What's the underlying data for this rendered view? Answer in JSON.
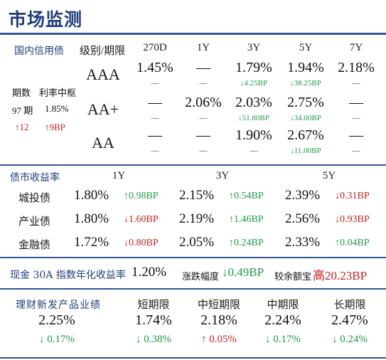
{
  "title": "市场监测",
  "credit": {
    "section_label": "国内信用债",
    "grade_header": "级别/期限",
    "columns": [
      "270D",
      "1Y",
      "3Y",
      "5Y",
      "7Y"
    ],
    "grades": [
      "AAA",
      "AA+",
      "AA"
    ],
    "values": [
      [
        "1.45%",
        "—",
        "1.79%",
        "1.94%",
        "2.18%"
      ],
      [
        "—",
        "2.06%",
        "2.03%",
        "2.75%",
        "—"
      ],
      [
        "—",
        "—",
        "1.90%",
        "2.67%",
        "—"
      ]
    ],
    "changes": [
      [
        {
          "d": "",
          "v": "—"
        },
        {
          "d": "",
          "v": "—"
        },
        {
          "d": "down",
          "v": "4.25BP"
        },
        {
          "d": "down",
          "v": "38.25BP"
        },
        {
          "d": "",
          "v": "—"
        }
      ],
      [
        {
          "d": "",
          "v": "—"
        },
        {
          "d": "",
          "v": "—"
        },
        {
          "d": "down",
          "v": "51.80BP"
        },
        {
          "d": "down",
          "v": "34.00BP"
        },
        {
          "d": "",
          "v": "—"
        }
      ],
      [
        {
          "d": "",
          "v": "—"
        },
        {
          "d": "",
          "v": "—"
        },
        {
          "d": "",
          "v": "—"
        },
        {
          "d": "down",
          "v": "11.00BP"
        },
        {
          "d": "",
          "v": "—"
        }
      ]
    ],
    "term_label": "期数",
    "rate_label": "利率中枢",
    "term_value": "97 期",
    "rate_value": "1.85%",
    "term_change": "12",
    "rate_change": "9BP"
  },
  "bond_yield": {
    "section_label": "债市收益率",
    "columns": [
      "1Y",
      "3Y",
      "5Y"
    ],
    "rows": [
      {
        "label": "城投债",
        "cells": [
          {
            "v": "1.80%",
            "d": "up",
            "c": "0.98BP"
          },
          {
            "v": "2.15%",
            "d": "up",
            "c": "0.54BP"
          },
          {
            "v": "2.39%",
            "d": "down",
            "c": "0.31BP"
          }
        ]
      },
      {
        "label": "产业债",
        "cells": [
          {
            "v": "1.80%",
            "d": "down",
            "c": "1.60BP"
          },
          {
            "v": "2.19%",
            "d": "up",
            "c": "1.46BP"
          },
          {
            "v": "2.56%",
            "d": "down",
            "c": "0.93BP"
          }
        ]
      },
      {
        "label": "金融债",
        "cells": [
          {
            "v": "1.72%",
            "d": "down",
            "c": "0.80BP"
          },
          {
            "v": "2.05%",
            "d": "up",
            "c": "0.24BP"
          },
          {
            "v": "2.33%",
            "d": "up",
            "c": "0.04BP"
          }
        ]
      }
    ]
  },
  "cash": {
    "label": "现金 30A 指数年化收益率",
    "value": "1.20%",
    "change_label": "涨跌幅度",
    "change_value": "0.49BP",
    "balance_label": "较余额宝",
    "balance_word": "高",
    "balance_value": "20.23BP"
  },
  "wealth": {
    "section_label": "理财新发产品业绩",
    "overall_value": "2.25%",
    "overall_change": "0.17%",
    "overall_dir": "down",
    "columns": [
      {
        "label": "短期限",
        "value": "1.74%",
        "dir": "down",
        "change": "0.38%"
      },
      {
        "label": "中短期限",
        "value": "2.18%",
        "dir": "up",
        "change": "0.05%"
      },
      {
        "label": "中期限",
        "value": "2.24%",
        "dir": "down",
        "change": "0.17%"
      },
      {
        "label": "长期限",
        "value": "2.47%",
        "dir": "down",
        "change": "0.24%"
      }
    ]
  },
  "colors": {
    "accent": "#2f5597",
    "up": "#c81e1e",
    "down": "#1e9a48"
  }
}
